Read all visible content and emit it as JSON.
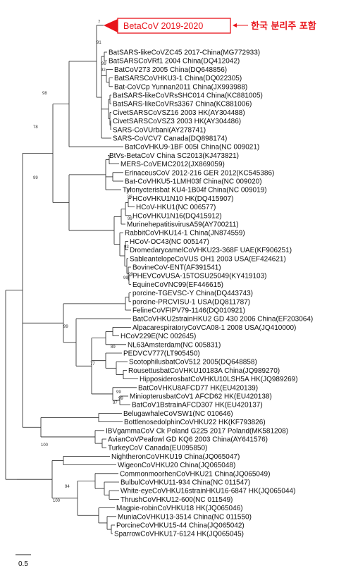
{
  "highlight": {
    "clade_label": "BetaCoV 2019-2020",
    "annotation": "한국 분리주 포함",
    "color": "#e8141b"
  },
  "scale_bar": {
    "label": "0.5",
    "value": 0.5
  },
  "support_values": [
    "7",
    "91",
    "99",
    "92",
    "98",
    "78",
    "99",
    "99",
    "93",
    "99",
    "99",
    "89",
    "87",
    "86",
    "100",
    "99",
    "77",
    "99",
    "99",
    "97",
    "100",
    "94"
  ],
  "taxa": [
    {
      "name": "BatSARS-likeCoVZC45 2017-China(MG772933)",
      "color": "#111111"
    },
    {
      "name": "BatSARSCoVRf1 2004 China(DQ412042)",
      "color": "#111111"
    },
    {
      "name": "BatCoV273 2005 China(DQ648856)",
      "color": "#111111"
    },
    {
      "name": "BatSARSCoVHKU3-1 China(DQ022305)",
      "color": "#111111"
    },
    {
      "name": "Bat-CoVCp Yunnan2011 China(JX993988)",
      "color": "#111111"
    },
    {
      "name": "BatSARS-likeCoVRsSHC014 China(KC881005)",
      "color": "#111111"
    },
    {
      "name": "BatSARS-likeCoVRs3367 China(KC881006)",
      "color": "#111111"
    },
    {
      "name": "CivetSARSCoVSZ16 2003 HK(AY304488)",
      "color": "#111111"
    },
    {
      "name": "CivetSARSCoVSZ3 2003 HK(AY304486)",
      "color": "#111111"
    },
    {
      "name": "SARS-CoVUrbani(AY278741)",
      "color": "#cc33cc"
    },
    {
      "name": "SARS-CoVCV7 Canada(DQ898174)",
      "color": "#111111"
    },
    {
      "name": "BatCoVHKU9-1BF 005I China(NC 009021)",
      "color": "#111111"
    },
    {
      "name": "BtVs-BetaCoV China SC2013(KJ473821)",
      "color": "#111111"
    },
    {
      "name": "MERS-CoVEMC2012(JX869059)",
      "color": "#2233bb"
    },
    {
      "name": "ErinaceusCoV 2012-216 GER 2012(KC545386)",
      "color": "#111111"
    },
    {
      "name": "Bat-CoVHKU5-1LMH03f China(NC 009020)",
      "color": "#111111"
    },
    {
      "name": "Tylonycterisbat KU4-1B04f China(NC 009019)",
      "color": "#111111"
    },
    {
      "name": "HCoVHKU1N10 HK(DQ415907)",
      "color": "#111111"
    },
    {
      "name": "HCoV-HKU1(NC 006577)",
      "color": "#22c6d8"
    },
    {
      "name": "HCoVHKU1N16(DQ415912)",
      "color": "#111111"
    },
    {
      "name": "MurinehepatitisvirusA59(AY700211)",
      "color": "#111111"
    },
    {
      "name": "RabbitCoVHKU14-1 China(JN874559)",
      "color": "#111111"
    },
    {
      "name": "HCoV-OC43(NC 005147)",
      "color": "#2dbb2d"
    },
    {
      "name": "DromedarycamelCoVHKU23-368F UAE(KF906251)",
      "color": "#111111"
    },
    {
      "name": "SableantelopeCoVUS OH1 2003 USA(EF424621)",
      "color": "#111111"
    },
    {
      "name": "BovineCoV-ENT(AF391541)",
      "color": "#111111"
    },
    {
      "name": "PHEVCoVUSA-15TOSU25049(KY419103)",
      "color": "#111111"
    },
    {
      "name": "EquineCoVNC99(EF446615)",
      "color": "#111111"
    },
    {
      "name": "porcine-TGEVSC-Y China(DQ443743)",
      "color": "#111111"
    },
    {
      "name": "porcine-PRCVISU-1 USA(DQ811787)",
      "color": "#111111"
    },
    {
      "name": "FelineCoVFIPV79-1146(DQ010921)",
      "color": "#111111"
    },
    {
      "name": "BatCoVHKU2strainHKU2 GD 430 2006 China(EF203064)",
      "color": "#111111"
    },
    {
      "name": "AlpacarespiratoryCoVCA08-1 2008 USA(JQ410000)",
      "color": "#111111"
    },
    {
      "name": "HCoV229E(NC 002645)",
      "color": "#dd2222"
    },
    {
      "name": "NL63Amsterdam(NC 005831)",
      "color": "#e8891a"
    },
    {
      "name": "PEDVCV777(LT905450)",
      "color": "#111111"
    },
    {
      "name": "ScotophilusbatCoV512 2005(DQ648858)",
      "color": "#111111"
    },
    {
      "name": "RousettusbatCoVHKU10183A China(JQ989270)",
      "color": "#111111"
    },
    {
      "name": "HipposiderosbatCoVHKU10LSH5A HK(JQ989269)",
      "color": "#111111"
    },
    {
      "name": "BatCoVHKU8AFCD77 HK(EU420139)",
      "color": "#111111"
    },
    {
      "name": "MiniopterusbatCoV1 AFCD62 HK(EU420138)",
      "color": "#111111"
    },
    {
      "name": "BatCoV1BstrainAFCD307 HK(EU420137)",
      "color": "#111111"
    },
    {
      "name": "BelugawhaleCoVSW1(NC 010646)",
      "color": "#111111"
    },
    {
      "name": "BottlenosedolphinCoVHKU22 HK(KF793826)",
      "color": "#111111"
    },
    {
      "name": "IBVgammaCoV Ck Poland G225 2017 Poland(MK581208)",
      "color": "#111111"
    },
    {
      "name": "AvianCoVPeafowl GD KQ6 2003 China(AY641576)",
      "color": "#111111"
    },
    {
      "name": "TurkeyCoV Canada(EU095850)",
      "color": "#111111"
    },
    {
      "name": "NightheronCoVHKU19 China(JQ065047)",
      "color": "#111111"
    },
    {
      "name": "WigeonCoVHKU20 China(JQ065048)",
      "color": "#111111"
    },
    {
      "name": "CommonmoorhenCoVHKU21 China(JQ065049)",
      "color": "#111111"
    },
    {
      "name": "BulbulCoVHKU11-934 China(NC 011547)",
      "color": "#111111"
    },
    {
      "name": "White-eyeCoVHKU16strainHKU16-6847 HK(JQ065044)",
      "color": "#111111"
    },
    {
      "name": "ThrushCoVHKU12-600(NC 011549)",
      "color": "#111111"
    },
    {
      "name": "Magpie-robinCoVHKU18 HK(JQ065046)",
      "color": "#111111"
    },
    {
      "name": "MuniaCoVHKU13-3514 China(NC 011550)",
      "color": "#111111"
    },
    {
      "name": "PorcineCoVHKU15-44 China(JQ065042)",
      "color": "#111111"
    },
    {
      "name": "SparrowCoVHKU17-6124 HK(JQ065045)",
      "color": "#111111"
    }
  ]
}
